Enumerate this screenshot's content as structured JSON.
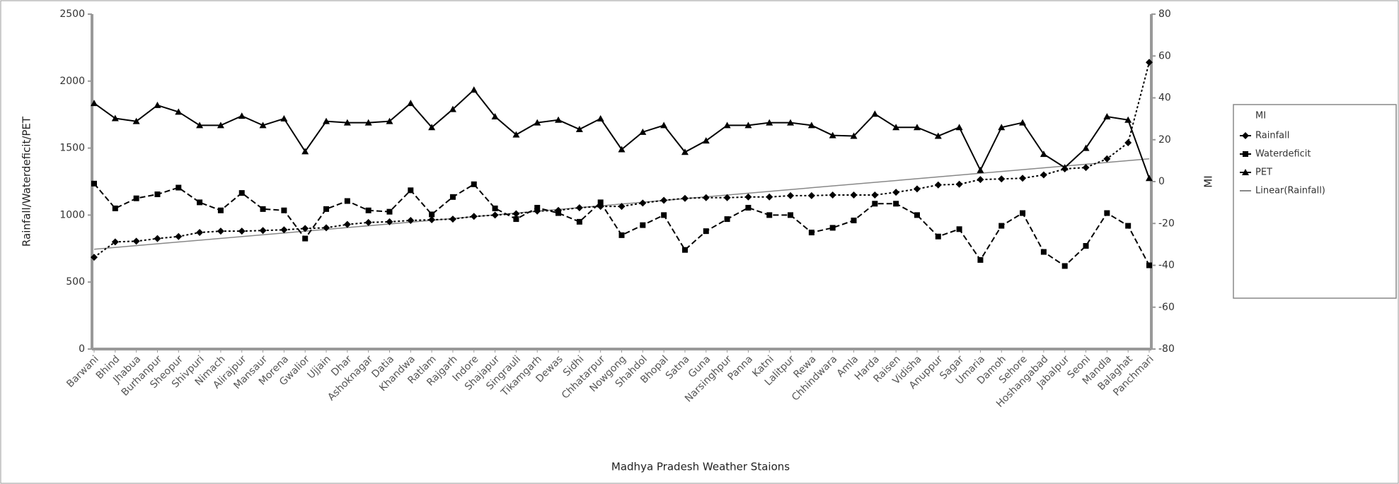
{
  "chart_data": {
    "type": "line",
    "x_label": "Madhya Pradesh Weather Staions",
    "y_label": "Rainfall/Waterdeficit/PET",
    "y2_label": "MI",
    "legend_header": "MI",
    "categories": [
      "Barwani",
      "Bhind",
      "Jhabua",
      "Burhanpur",
      "Sheopur",
      "Shivpuri",
      "Nimach",
      "Alirajpur",
      "Mansaur",
      "Morena",
      "Gwalior",
      "Ujjain",
      "Dhar",
      "Ashoknagar",
      "Datia",
      "Khandwa",
      "Ratlam",
      "Rajgarh",
      "Indore",
      "Shajapur",
      "Singrauli",
      "Tikamgarh",
      "Dewas",
      "Sidhi",
      "Chhatarpur",
      "Nowgong",
      "Shahdol",
      "Bhopal",
      "Satna",
      "Guna",
      "Narsinghpur",
      "Panna",
      "Katni",
      "Lalitpur",
      "Rewa",
      "Chhindwara",
      "Amla",
      "Harda",
      "Raisen",
      "Vidisha",
      "Anuppur",
      "Sagar",
      "Umaria",
      "Damoh",
      "Sehore",
      "Hoshangabad",
      "Jabalpur",
      "Seoni",
      "Mandla",
      "Balaghat",
      "Panchmari"
    ],
    "series": [
      {
        "name": "Rainfall",
        "color": "#000000",
        "marker": "diamond",
        "line_style": "dotted",
        "values": [
          685,
          800,
          805,
          825,
          840,
          870,
          880,
          880,
          885,
          890,
          900,
          905,
          930,
          945,
          950,
          960,
          965,
          970,
          990,
          1000,
          1010,
          1030,
          1035,
          1055,
          1065,
          1065,
          1090,
          1110,
          1125,
          1130,
          1130,
          1135,
          1135,
          1145,
          1145,
          1150,
          1150,
          1150,
          1170,
          1195,
          1225,
          1230,
          1265,
          1270,
          1275,
          1300,
          1345,
          1355,
          1420,
          1540,
          2140
        ]
      },
      {
        "name": "Waterdeficit",
        "color": "#000000",
        "marker": "square",
        "line_style": "dashed",
        "values": [
          1235,
          1050,
          1125,
          1155,
          1205,
          1095,
          1035,
          1165,
          1045,
          1035,
          825,
          1045,
          1105,
          1035,
          1025,
          1185,
          1005,
          1135,
          1230,
          1050,
          970,
          1055,
          1015,
          950,
          1095,
          850,
          925,
          1000,
          740,
          880,
          970,
          1055,
          1000,
          1000,
          870,
          905,
          960,
          1085,
          1085,
          1000,
          840,
          895,
          665,
          920,
          1015,
          725,
          620,
          770,
          1015,
          920,
          625
        ]
      },
      {
        "name": "PET",
        "color": "#000000",
        "marker": "triangle",
        "line_style": "solid",
        "values": [
          1835,
          1722,
          1700,
          1820,
          1770,
          1670,
          1670,
          1740,
          1670,
          1720,
          1475,
          1700,
          1690,
          1690,
          1700,
          1835,
          1655,
          1790,
          1935,
          1735,
          1600,
          1690,
          1710,
          1640,
          1720,
          1490,
          1620,
          1670,
          1470,
          1555,
          1670,
          1670,
          1690,
          1690,
          1670,
          1595,
          1590,
          1755,
          1655,
          1655,
          1590,
          1655,
          1335,
          1655,
          1690,
          1455,
          1355,
          1500,
          1735,
          1710,
          1275
        ]
      }
    ],
    "trend": {
      "name": "Linear(Rainfall)",
      "color": "#888888",
      "values": [
        745,
        1420
      ]
    },
    "ylim": [
      0,
      2500
    ],
    "yticks": [
      0,
      500,
      1000,
      1500,
      2000,
      2500
    ],
    "y2lim": [
      -80,
      80
    ],
    "y2ticks": [
      -80,
      -60,
      -40,
      -20,
      0,
      20,
      40,
      60,
      80
    ],
    "legend": "right"
  }
}
